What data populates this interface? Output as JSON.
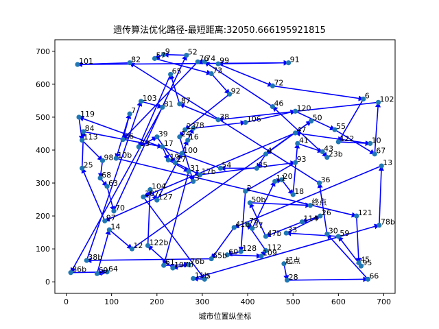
{
  "chart_data": {
    "type": "scatter",
    "title": "遗传算法优化路径-最短距离:32050.666195921815",
    "xlabel": "城市位置纵坐标",
    "ylabel": "",
    "xlim": [
      -25,
      725
    ],
    "ylim": [
      -35,
      735
    ],
    "x_ticks": [
      0,
      100,
      200,
      300,
      400,
      500,
      600,
      700
    ],
    "y_ticks": [
      0,
      100,
      200,
      300,
      400,
      500,
      600,
      700
    ],
    "grid": false,
    "series": [
      {
        "points": [
          {
            "label": "101",
            "x": 25,
            "y": 660
          },
          {
            "label": "82",
            "x": 140,
            "y": 665
          },
          {
            "label": "57",
            "x": 195,
            "y": 678
          },
          {
            "label": "9",
            "x": 215,
            "y": 690
          },
          {
            "label": "52",
            "x": 265,
            "y": 688
          },
          {
            "label": "76",
            "x": 290,
            "y": 668
          },
          {
            "label": "74",
            "x": 305,
            "y": 668
          },
          {
            "label": "99",
            "x": 335,
            "y": 662
          },
          {
            "label": "91",
            "x": 490,
            "y": 665
          },
          {
            "label": "65",
            "x": 230,
            "y": 630
          },
          {
            "label": "73",
            "x": 320,
            "y": 632
          },
          {
            "label": "72",
            "x": 455,
            "y": 595
          },
          {
            "label": "92",
            "x": 360,
            "y": 570
          },
          {
            "label": "6",
            "x": 655,
            "y": 555
          },
          {
            "label": "102",
            "x": 688,
            "y": 545
          },
          {
            "label": "103",
            "x": 165,
            "y": 548
          },
          {
            "label": "87",
            "x": 250,
            "y": 540
          },
          {
            "label": "81",
            "x": 212,
            "y": 530
          },
          {
            "label": "46",
            "x": 455,
            "y": 532
          },
          {
            "label": "120",
            "x": 505,
            "y": 518
          },
          {
            "label": "7",
            "x": 140,
            "y": 510
          },
          {
            "label": "119",
            "x": 28,
            "y": 500
          },
          {
            "label": "38",
            "x": 335,
            "y": 492
          },
          {
            "label": "106",
            "x": 395,
            "y": 484
          },
          {
            "label": "50",
            "x": 540,
            "y": 488
          },
          {
            "label": "55",
            "x": 592,
            "y": 462
          },
          {
            "label": "23",
            "x": 262,
            "y": 462
          },
          {
            "label": "78",
            "x": 280,
            "y": 466
          },
          {
            "label": "47",
            "x": 505,
            "y": 452
          },
          {
            "label": "84",
            "x": 38,
            "y": 456
          },
          {
            "label": "113",
            "x": 35,
            "y": 430
          },
          {
            "label": "86",
            "x": 125,
            "y": 432
          },
          {
            "label": "39",
            "x": 200,
            "y": 440
          },
          {
            "label": "24",
            "x": 250,
            "y": 440
          },
          {
            "label": "16",
            "x": 268,
            "y": 430
          },
          {
            "label": "122",
            "x": 600,
            "y": 425
          },
          {
            "label": "10",
            "x": 670,
            "y": 420
          },
          {
            "label": "41",
            "x": 510,
            "y": 420
          },
          {
            "label": "17",
            "x": 212,
            "y": 410
          },
          {
            "label": "53",
            "x": 160,
            "y": 410
          },
          {
            "label": "100",
            "x": 255,
            "y": 390
          },
          {
            "label": "43",
            "x": 565,
            "y": 395
          },
          {
            "label": "67",
            "x": 680,
            "y": 388
          },
          {
            "label": "10b",
            "x": 110,
            "y": 375
          },
          {
            "label": "4",
            "x": 440,
            "y": 388
          },
          {
            "label": "23b",
            "x": 575,
            "y": 378
          },
          {
            "label": "98",
            "x": 80,
            "y": 368
          },
          {
            "label": "19",
            "x": 225,
            "y": 370
          },
          {
            "label": "27",
            "x": 240,
            "y": 362
          },
          {
            "label": "13",
            "x": 695,
            "y": 352
          },
          {
            "label": "93",
            "x": 505,
            "y": 362
          },
          {
            "label": "25",
            "x": 35,
            "y": 345
          },
          {
            "label": "54",
            "x": 340,
            "y": 345
          },
          {
            "label": "35",
            "x": 420,
            "y": 345
          },
          {
            "label": "31",
            "x": 270,
            "y": 335
          },
          {
            "label": "17b",
            "x": 295,
            "y": 325
          },
          {
            "label": "68",
            "x": 75,
            "y": 315
          },
          {
            "label": "63",
            "x": 90,
            "y": 290
          },
          {
            "label": "3",
            "x": 280,
            "y": 305
          },
          {
            "label": "11",
            "x": 460,
            "y": 305
          },
          {
            "label": "20",
            "x": 475,
            "y": 310
          },
          {
            "label": "36",
            "x": 558,
            "y": 300
          },
          {
            "label": "104",
            "x": 185,
            "y": 280
          },
          {
            "label": "2",
            "x": 395,
            "y": 275
          },
          {
            "label": "18",
            "x": 500,
            "y": 265
          },
          {
            "label": "107",
            "x": 170,
            "y": 258
          },
          {
            "label": "127",
            "x": 200,
            "y": 248
          },
          {
            "label": "50b",
            "x": 405,
            "y": 240
          },
          {
            "label": "终点",
            "x": 538,
            "y": 232
          },
          {
            "label": "70",
            "x": 105,
            "y": 215
          },
          {
            "label": "26",
            "x": 560,
            "y": 200
          },
          {
            "label": "121",
            "x": 640,
            "y": 200
          },
          {
            "label": "114",
            "x": 520,
            "y": 182
          },
          {
            "label": "97",
            "x": 85,
            "y": 185
          },
          {
            "label": "75",
            "x": 400,
            "y": 175
          },
          {
            "label": "78b",
            "x": 690,
            "y": 172
          },
          {
            "label": "41b",
            "x": 370,
            "y": 165
          },
          {
            "label": "37",
            "x": 410,
            "y": 162
          },
          {
            "label": "14",
            "x": 95,
            "y": 158
          },
          {
            "label": "33",
            "x": 485,
            "y": 148
          },
          {
            "label": "30",
            "x": 575,
            "y": 145
          },
          {
            "label": "59",
            "x": 600,
            "y": 138
          },
          {
            "label": "47b",
            "x": 440,
            "y": 138
          },
          {
            "label": "12",
            "x": 145,
            "y": 100
          },
          {
            "label": "122b",
            "x": 180,
            "y": 110
          },
          {
            "label": "128",
            "x": 385,
            "y": 92
          },
          {
            "label": "112",
            "x": 440,
            "y": 95
          },
          {
            "label": "60",
            "x": 355,
            "y": 82
          },
          {
            "label": "65b",
            "x": 320,
            "y": 70
          },
          {
            "label": "109",
            "x": 430,
            "y": 78
          },
          {
            "label": "38b",
            "x": 45,
            "y": 65
          },
          {
            "label": "61",
            "x": 215,
            "y": 50
          },
          {
            "label": "76b",
            "x": 270,
            "y": 52
          },
          {
            "label": "107b",
            "x": 235,
            "y": 42
          },
          {
            "label": "起点",
            "x": 480,
            "y": 55
          },
          {
            "label": "45",
            "x": 645,
            "y": 58
          },
          {
            "label": "95",
            "x": 650,
            "y": 48
          },
          {
            "label": "86b",
            "x": 10,
            "y": 28
          },
          {
            "label": "69",
            "x": 68,
            "y": 25
          },
          {
            "label": "64",
            "x": 90,
            "y": 30
          },
          {
            "label": "11b",
            "x": 280,
            "y": 10
          },
          {
            "label": "5",
            "x": 305,
            "y": 8
          },
          {
            "label": "28",
            "x": 487,
            "y": 5
          },
          {
            "label": "66",
            "x": 665,
            "y": 8
          }
        ]
      }
    ],
    "route": [
      "起点",
      "28",
      "66",
      "30",
      "36",
      "82",
      "101",
      "91",
      "99",
      "72",
      "6",
      "122",
      "10",
      "47",
      "107",
      "5",
      "11b",
      "78b",
      "13",
      "41b",
      "65b",
      "38b",
      "103",
      "81",
      "86b",
      "64",
      "69",
      "14",
      "12",
      "50",
      "4",
      "35",
      "54",
      "119",
      "113",
      "98",
      "68",
      "63",
      "70",
      "52",
      "9",
      "57",
      "73",
      "92",
      "23",
      "24",
      "3",
      "97",
      "25",
      "84",
      "17",
      "19",
      "31",
      "61",
      "76b",
      "107b",
      "122b",
      "104",
      "127",
      "100",
      "16",
      "78",
      "106",
      "120",
      "55",
      "67",
      "102",
      "38",
      "87",
      "65",
      "53",
      "39",
      "27",
      "17b",
      "93",
      "2",
      "128",
      "60",
      "109",
      "112",
      "75",
      "37",
      "11",
      "20",
      "18",
      "41",
      "43",
      "23b",
      "46",
      "74",
      "76",
      "86",
      "7",
      "10b",
      "121",
      "45",
      "95",
      "59",
      "33",
      "26",
      "114",
      "47b",
      "50b",
      "终点"
    ]
  }
}
